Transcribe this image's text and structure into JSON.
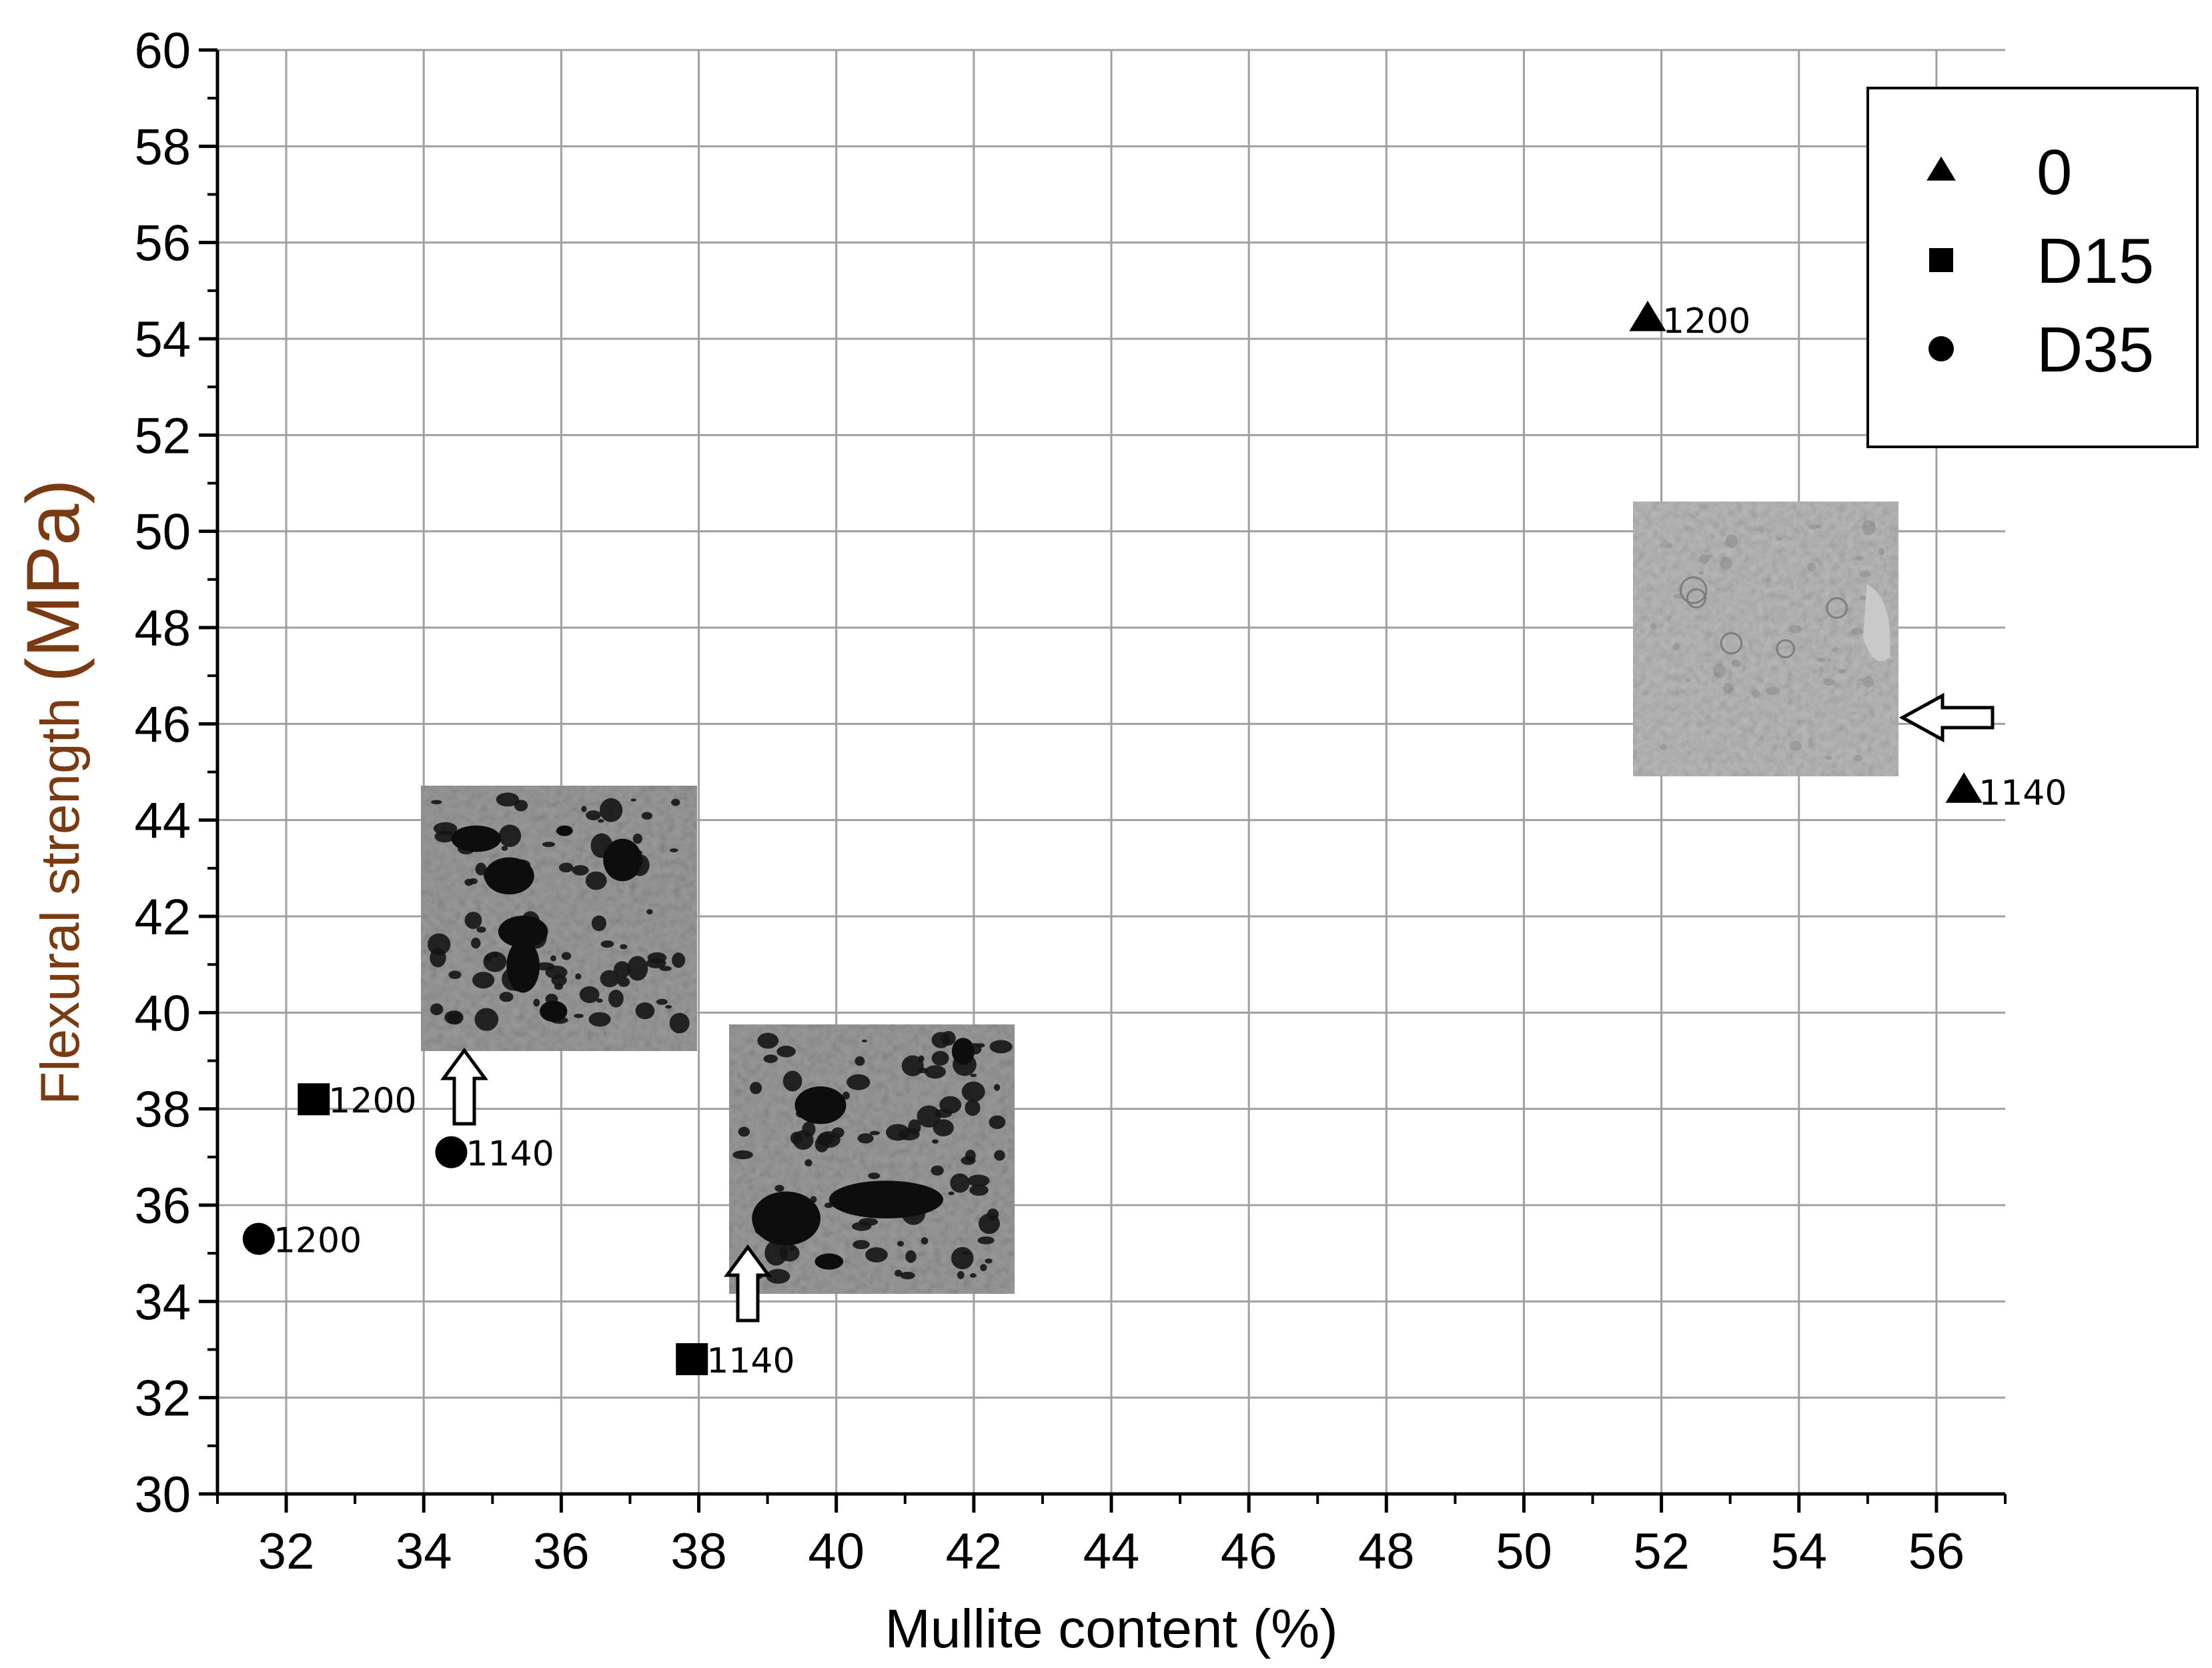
{
  "chart_data": {
    "type": "scatter",
    "xlabel": "Mullite content (%)",
    "ylabel_prefix": "Flexural strength ",
    "ylabel_unit": "(MPa)",
    "xlim": [
      31,
      57
    ],
    "ylim": [
      30,
      60
    ],
    "x_ticks": [
      32,
      34,
      36,
      38,
      40,
      42,
      44,
      46,
      48,
      50,
      52,
      54,
      56
    ],
    "y_ticks": [
      30,
      32,
      34,
      36,
      38,
      40,
      42,
      44,
      46,
      48,
      50,
      52,
      54,
      56,
      58,
      60
    ],
    "grid": true,
    "legend_position": "top-right",
    "series": [
      {
        "name": "0",
        "marker": "triangle",
        "points": [
          {
            "x": 51.8,
            "y": 54.4,
            "label": "1200"
          },
          {
            "x": 56.4,
            "y": 44.6,
            "label": "1140"
          }
        ]
      },
      {
        "name": "D15",
        "marker": "square",
        "points": [
          {
            "x": 32.4,
            "y": 38.2,
            "label": "1200"
          },
          {
            "x": 37.9,
            "y": 32.8,
            "label": "1140"
          }
        ]
      },
      {
        "name": "D35",
        "marker": "circle",
        "points": [
          {
            "x": 31.6,
            "y": 35.3,
            "label": "1200"
          },
          {
            "x": 34.4,
            "y": 37.1,
            "label": "1140"
          }
        ]
      }
    ],
    "colors": {
      "axis": "#000000",
      "grid": "#a0a0a0",
      "ylabel": "#7a3b12",
      "marker": "#000000"
    },
    "insets": [
      {
        "name": "micrograph-0-1140",
        "style": "light",
        "arrow": "left"
      },
      {
        "name": "micrograph-d35-1140",
        "style": "porous",
        "arrow": "up"
      },
      {
        "name": "micrograph-d15-1140",
        "style": "porous",
        "arrow": "up"
      }
    ]
  }
}
